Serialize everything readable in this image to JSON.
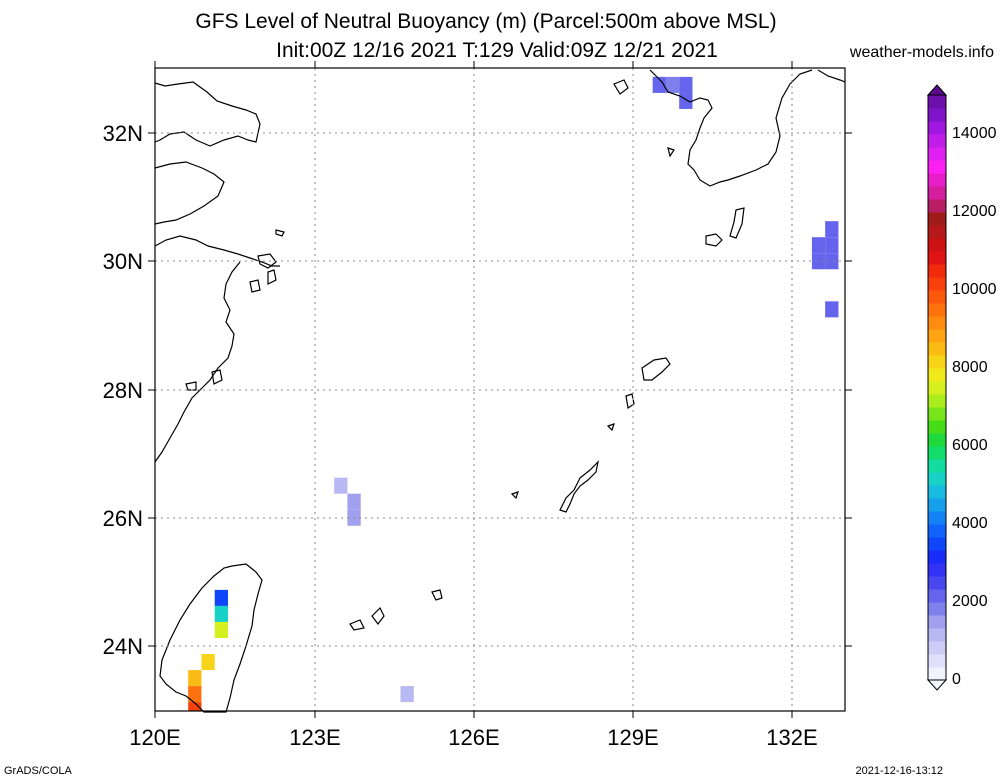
{
  "title_line1": "GFS Level of Neutral Buoyancy (m) (Parcel:500m above MSL)",
  "title_line2": "Init:00Z 12/16 2021 T:129 Valid:09Z 12/21 2021",
  "source_site": "weather-models.info",
  "footer_left": "GrADS/COLA",
  "footer_right": "2021-12-16-13:12",
  "lat_labels": [
    "24N",
    "26N",
    "28N",
    "30N",
    "32N"
  ],
  "lon_labels": [
    "120E",
    "123E",
    "126E",
    "129E",
    "132E"
  ],
  "colorbar": {
    "labels": [
      "0",
      "2000",
      "4000",
      "6000",
      "8000",
      "10000",
      "12000",
      "14000"
    ],
    "colors": [
      "#f2f2ff",
      "#e0e0fb",
      "#ccccf6",
      "#b8b8f2",
      "#a0a0ee",
      "#8080ec",
      "#6464ec",
      "#4848ee",
      "#3232f4",
      "#1a2cf8",
      "#1046fa",
      "#1064fa",
      "#1282f4",
      "#16a0ec",
      "#18bce0",
      "#18d2c8",
      "#12dca0",
      "#12dc6c",
      "#1ed83c",
      "#46dc1a",
      "#78e41a",
      "#aaec1c",
      "#d4f01e",
      "#f0ea1a",
      "#f8d418",
      "#fabc14",
      "#fca412",
      "#fe8c10",
      "#fe720e",
      "#fc580c",
      "#f8400a",
      "#f02a0a",
      "#e01414",
      "#cc1212",
      "#b41818",
      "#a01c1c",
      "#b81e64",
      "#d41e9e",
      "#e81ec8",
      "#fc20f2",
      "#e020f0",
      "#c01ee8",
      "#a018e0",
      "#8014c8",
      "#6c10ac"
    ]
  },
  "grid_cells": [
    {
      "lon": 129.5,
      "lat": 32.75,
      "level": 2200
    },
    {
      "lon": 129.75,
      "lat": 32.75,
      "level": 1800
    },
    {
      "lon": 130.0,
      "lat": 32.75,
      "level": 2000
    },
    {
      "lon": 130.0,
      "lat": 32.5,
      "level": 2100
    },
    {
      "lon": 132.5,
      "lat": 30.25,
      "level": 2300
    },
    {
      "lon": 132.75,
      "lat": 30.25,
      "level": 2300
    },
    {
      "lon": 132.75,
      "lat": 30.5,
      "level": 2200
    },
    {
      "lon": 132.5,
      "lat": 30.0,
      "level": 2300
    },
    {
      "lon": 132.75,
      "lat": 30.0,
      "level": 2300
    },
    {
      "lon": 132.75,
      "lat": 29.25,
      "level": 2200
    },
    {
      "lon": 123.5,
      "lat": 26.5,
      "level": 1100
    },
    {
      "lon": 123.75,
      "lat": 26.25,
      "level": 1500
    },
    {
      "lon": 123.75,
      "lat": 26.0,
      "level": 1400
    },
    {
      "lon": 124.75,
      "lat": 23.25,
      "level": 1300
    },
    {
      "lon": 121.25,
      "lat": 24.75,
      "level": 3400
    },
    {
      "lon": 121.25,
      "lat": 24.5,
      "level": 5200
    },
    {
      "lon": 121.25,
      "lat": 24.25,
      "level": 7400
    },
    {
      "lon": 121.0,
      "lat": 23.75,
      "level": 8200
    },
    {
      "lon": 120.75,
      "lat": 23.5,
      "level": 8600
    },
    {
      "lon": 120.75,
      "lat": 23.25,
      "level": 9600
    },
    {
      "lon": 120.75,
      "lat": 23.0,
      "level": 10200
    }
  ]
}
